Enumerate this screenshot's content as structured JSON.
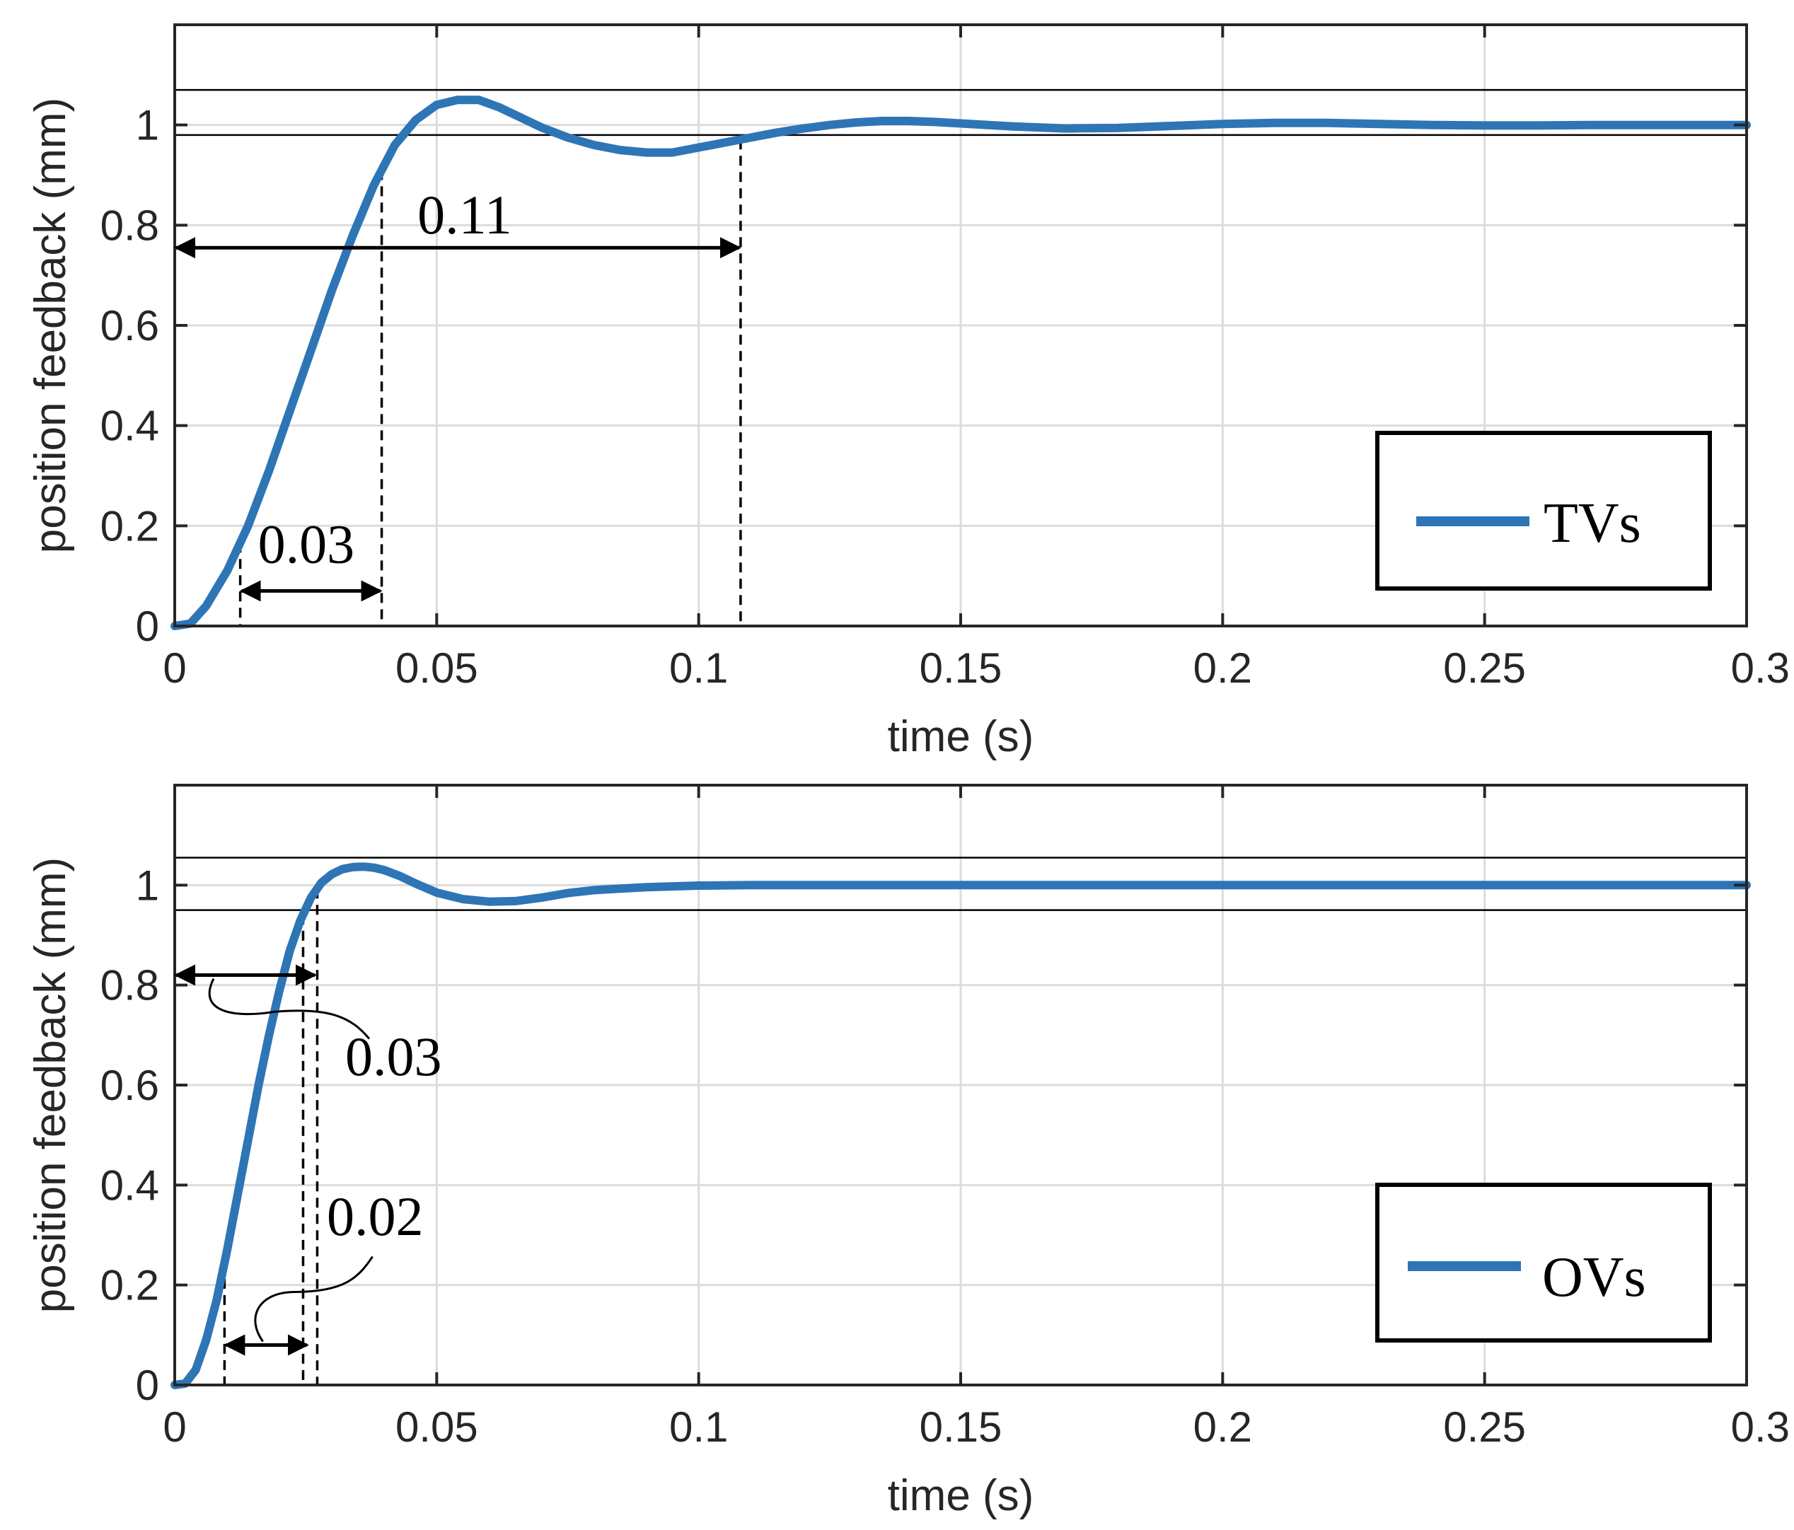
{
  "chart_data": [
    {
      "type": "line",
      "panel": "top",
      "title": "",
      "xlabel": "time (s)",
      "ylabel": "position feedback (mm)",
      "xlim": [
        0,
        0.3
      ],
      "ylim": [
        0,
        1.2
      ],
      "xticks": [
        0,
        0.05,
        0.1,
        0.15,
        0.2,
        0.25,
        0.3
      ],
      "xtick_labels": [
        "0",
        "0.05",
        "0.1",
        "0.15",
        "0.2",
        "0.25",
        "0.3"
      ],
      "yticks": [
        0,
        0.2,
        0.4,
        0.6,
        0.8,
        1
      ],
      "ytick_labels": [
        "0",
        "0.2",
        "0.4",
        "0.6",
        "0.8",
        "1"
      ],
      "grid": true,
      "legend": {
        "position": "bottom-right",
        "entries": [
          "TVs"
        ]
      },
      "tolerance_band": [
        0.98,
        1.07
      ],
      "series": [
        {
          "name": "TVs",
          "color": "#2e75b6",
          "x": [
            0,
            0.003,
            0.006,
            0.01,
            0.014,
            0.018,
            0.022,
            0.026,
            0.03,
            0.034,
            0.038,
            0.042,
            0.046,
            0.05,
            0.054,
            0.058,
            0.062,
            0.066,
            0.07,
            0.075,
            0.08,
            0.085,
            0.09,
            0.095,
            0.1,
            0.105,
            0.11,
            0.115,
            0.12,
            0.125,
            0.13,
            0.135,
            0.14,
            0.145,
            0.15,
            0.16,
            0.17,
            0.18,
            0.19,
            0.2,
            0.21,
            0.22,
            0.23,
            0.24,
            0.25,
            0.26,
            0.27,
            0.28,
            0.29,
            0.3
          ],
          "y": [
            0,
            0.005,
            0.04,
            0.11,
            0.2,
            0.31,
            0.43,
            0.55,
            0.67,
            0.78,
            0.88,
            0.96,
            1.01,
            1.04,
            1.05,
            1.05,
            1.035,
            1.015,
            0.995,
            0.975,
            0.96,
            0.95,
            0.945,
            0.945,
            0.955,
            0.965,
            0.975,
            0.985,
            0.993,
            1.0,
            1.005,
            1.008,
            1.008,
            1.006,
            1.003,
            0.997,
            0.993,
            0.994,
            0.998,
            1.002,
            1.004,
            1.004,
            1.002,
            1.0,
            0.999,
            0.999,
            1.0,
            1.0,
            1.0,
            1.0
          ]
        }
      ],
      "annotations": [
        {
          "text": "0.11",
          "from_x": 0,
          "to_x": 0.108,
          "at_y": 0.755
        },
        {
          "text": "0.03",
          "from_x": 0.0125,
          "to_x": 0.0395,
          "at_y": 0.07
        }
      ],
      "markers_x": [
        0.0125,
        0.0395,
        0.108
      ]
    },
    {
      "type": "line",
      "panel": "bottom",
      "title": "",
      "xlabel": "time (s)",
      "ylabel": "position feedback (mm)",
      "xlim": [
        0,
        0.3
      ],
      "ylim": [
        0,
        1.2
      ],
      "xticks": [
        0,
        0.05,
        0.1,
        0.15,
        0.2,
        0.25,
        0.3
      ],
      "xtick_labels": [
        "0",
        "0.05",
        "0.1",
        "0.15",
        "0.2",
        "0.25",
        "0.3"
      ],
      "yticks": [
        0,
        0.2,
        0.4,
        0.6,
        0.8,
        1
      ],
      "ytick_labels": [
        "0",
        "0.2",
        "0.4",
        "0.6",
        "0.8",
        "1"
      ],
      "grid": true,
      "legend": {
        "position": "bottom-right",
        "entries": [
          "OVs"
        ]
      },
      "tolerance_band": [
        0.95,
        1.055
      ],
      "series": [
        {
          "name": "OVs",
          "color": "#2e75b6",
          "x": [
            0,
            0.002,
            0.004,
            0.006,
            0.008,
            0.01,
            0.012,
            0.014,
            0.016,
            0.018,
            0.02,
            0.022,
            0.024,
            0.026,
            0.028,
            0.03,
            0.032,
            0.034,
            0.036,
            0.038,
            0.04,
            0.043,
            0.046,
            0.05,
            0.055,
            0.06,
            0.065,
            0.07,
            0.075,
            0.08,
            0.09,
            0.1,
            0.11,
            0.12,
            0.13,
            0.14,
            0.15,
            0.17,
            0.2,
            0.25,
            0.3
          ],
          "y": [
            0,
            0.003,
            0.03,
            0.09,
            0.17,
            0.27,
            0.38,
            0.49,
            0.6,
            0.7,
            0.79,
            0.87,
            0.93,
            0.975,
            1.005,
            1.022,
            1.032,
            1.036,
            1.037,
            1.035,
            1.03,
            1.018,
            1.003,
            0.985,
            0.972,
            0.967,
            0.968,
            0.975,
            0.984,
            0.99,
            0.996,
            0.999,
            1.0,
            1.0,
            1.0,
            1.0,
            1.0,
            1.0,
            1.0,
            1.0,
            1.0
          ]
        }
      ],
      "annotations": [
        {
          "text": "0.03",
          "from_x": 0,
          "to_x": 0.027,
          "at_y": 0.82
        },
        {
          "text": "0.02",
          "from_x": 0.0095,
          "to_x": 0.0255,
          "at_y": 0.08
        }
      ],
      "markers_x": [
        0.0095,
        0.0245,
        0.0272
      ]
    }
  ]
}
